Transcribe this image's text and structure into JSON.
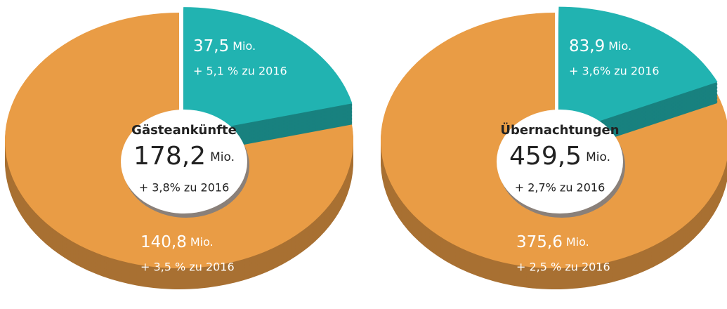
{
  "chart_data": [
    {
      "type": "pie",
      "center_title": "Gästeankünfte",
      "total": 178.2,
      "total_label": "178,2",
      "unit": "Mio.",
      "total_change": "+ 3,8% zu 2016",
      "values": [
        37.5,
        140.8
      ],
      "value_labels": [
        "37,5",
        "140,8"
      ],
      "changes": [
        "+ 5,1 % zu 2016",
        "+ 3,5 % zu 2016"
      ],
      "colors": [
        "#21b3b1",
        "#e99c45"
      ]
    },
    {
      "type": "pie",
      "center_title": "Übernachtungen",
      "total": 459.5,
      "total_label": "459,5",
      "unit": "Mio.",
      "total_change": "+ 2,7% zu 2016",
      "values": [
        83.9,
        375.6
      ],
      "value_labels": [
        "83,9",
        "375,6"
      ],
      "changes": [
        "+ 3,6% zu 2016",
        "+ 2,5 % zu 2016"
      ],
      "colors": [
        "#21b3b1",
        "#e99c45"
      ]
    }
  ]
}
